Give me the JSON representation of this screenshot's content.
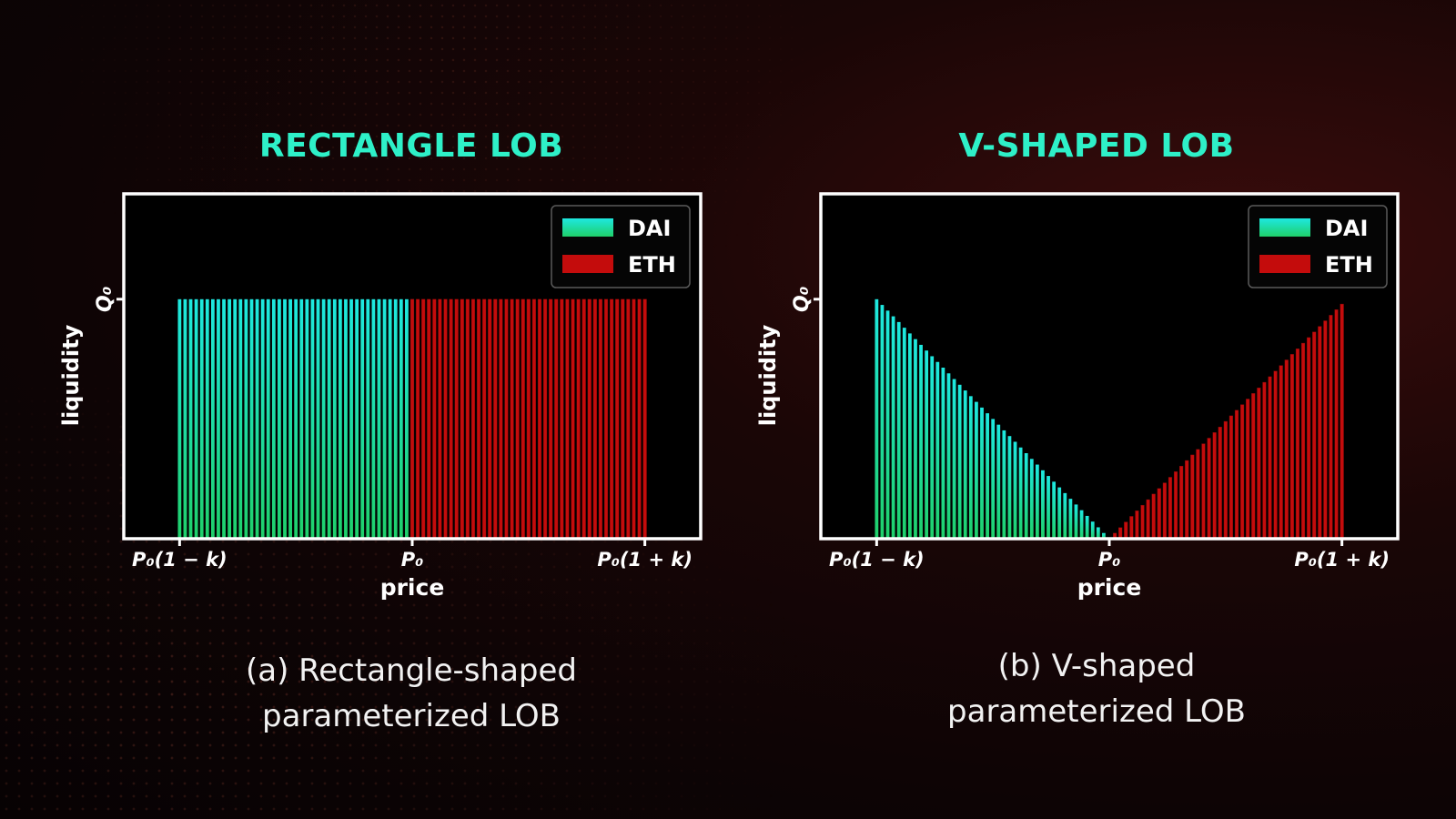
{
  "panels": [
    {
      "title": "RECTANGLE LOB",
      "caption_line1": "(a) Rectangle-shaped",
      "caption_line2": "parameterized LOB"
    },
    {
      "title": "V-SHAPED LOB",
      "caption_line1": "(b) V-shaped",
      "caption_line2": "parameterized LOB"
    }
  ],
  "colors": {
    "title": "#2ef0c8",
    "dai_top": "#1ee8e0",
    "dai_bottom": "#1fd06a",
    "eth": "#c40c0c",
    "axis": "#ffffff",
    "plot_bg": "#000000"
  },
  "chart_data": [
    {
      "type": "bar",
      "shape": "rectangle",
      "xlabel": "price",
      "ylabel": "liquidity",
      "ytick": "Q₀",
      "xticks": [
        "P₀(1 − k)",
        "P₀",
        "P₀(1 + k)"
      ],
      "xlim": [
        -1.24,
        1.24
      ],
      "ylim": [
        0,
        1.44
      ],
      "bars_per_side": 42,
      "grid": false,
      "legend_position": "top-right",
      "series": [
        {
          "name": "DAI",
          "x_range": [
            -1,
            0
          ],
          "level_at_start": 1,
          "level_at_end": 1
        },
        {
          "name": "ETH",
          "x_range": [
            0,
            1
          ],
          "level_at_start": 1,
          "level_at_end": 1
        }
      ]
    },
    {
      "type": "bar",
      "shape": "v",
      "xlabel": "price",
      "ylabel": "liquidity",
      "ytick": "Q₀",
      "xticks": [
        "P₀(1 − k)",
        "P₀",
        "P₀(1 + k)"
      ],
      "xlim": [
        -1.24,
        1.24
      ],
      "ylim": [
        0,
        1.44
      ],
      "bars_per_side": 42,
      "grid": false,
      "legend_position": "top-right",
      "series": [
        {
          "name": "DAI",
          "x_range": [
            -1,
            0
          ],
          "level_at_start": 1,
          "level_at_end": 0
        },
        {
          "name": "ETH",
          "x_range": [
            0,
            1
          ],
          "level_at_start": 0,
          "level_at_end": 0.98
        }
      ]
    }
  ]
}
